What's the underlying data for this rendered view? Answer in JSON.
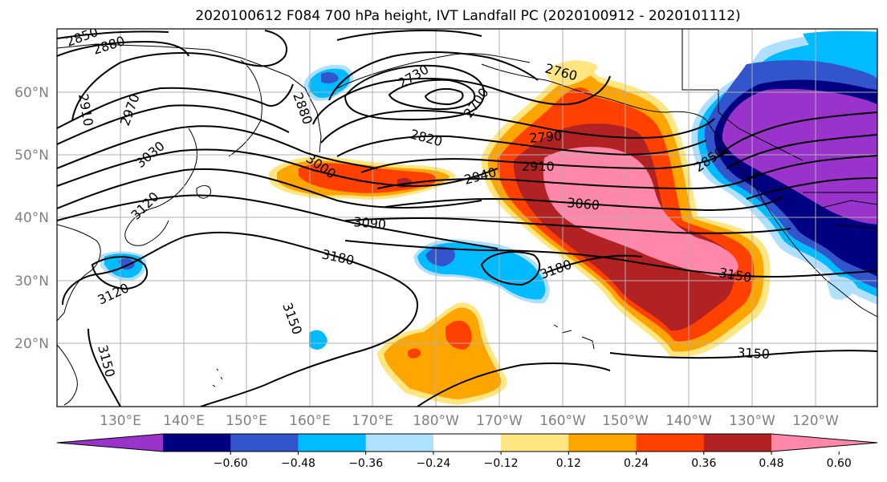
{
  "title": "2020100612 F084 700 hPa height, IVT Landfall PC (2020100912 - 2020101112)",
  "lat_labels": [
    "60°N",
    "50°N",
    "40°N",
    "30°N",
    "20°N"
  ],
  "lon_labels": [
    "130°E",
    "140°E",
    "150°E",
    "160°E",
    "170°E",
    "180°W",
    "170°W",
    "160°W",
    "150°W",
    "140°W",
    "130°W",
    "120°W"
  ],
  "contour_labels": [
    "2850",
    "2880",
    "2910",
    "2970",
    "3030",
    "3120",
    "3120",
    "3150",
    "2880",
    "3000",
    "2730",
    "2700",
    "2760",
    "2820",
    "2790",
    "2910",
    "2940",
    "3060",
    "3090",
    "3180",
    "3180",
    "3150",
    "2850",
    "3150",
    "3150"
  ],
  "colorbar": {
    "ticks": [
      "−0.60",
      "−0.48",
      "−0.36",
      "−0.24",
      "−0.12",
      "0.12",
      "0.24",
      "0.36",
      "0.48",
      "0.60"
    ],
    "colors": [
      "#9933cc",
      "#000080",
      "#3355cc",
      "#00bbff",
      "#b0e0ff",
      "#ffffff",
      "#ffe680",
      "#ffa500",
      "#ff4000",
      "#b22222",
      "#ff88aa"
    ],
    "range": [
      -0.72,
      0.72
    ]
  },
  "legend_colors": {
    "purple": "#9933cc",
    "navy": "#000080",
    "royal": "#3355cc",
    "sky": "#00bbff",
    "pale": "#b0e0ff",
    "yellow": "#ffe680",
    "orange": "#ffa500",
    "red": "#ff4000",
    "brick": "#b22222",
    "pink": "#ff88aa"
  }
}
